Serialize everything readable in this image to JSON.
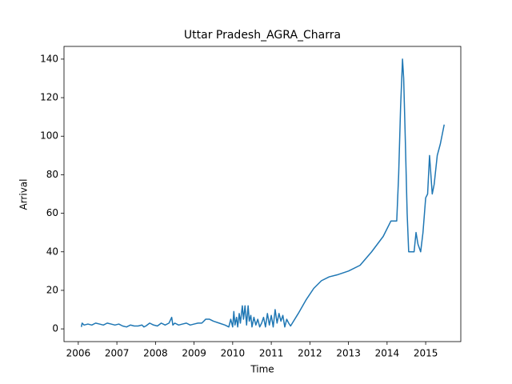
{
  "chart_data": {
    "type": "line",
    "title": "Uttar Pradesh_AGRA_Charra",
    "x_label": "Time",
    "y_label": "Arrival",
    "color": "#1f77b4",
    "x": [
      2006.08,
      2006.1,
      2006.15,
      2006.25,
      2006.35,
      2006.45,
      2006.55,
      2006.65,
      2006.75,
      2006.85,
      2006.95,
      2007.05,
      2007.15,
      2007.25,
      2007.35,
      2007.45,
      2007.55,
      2007.65,
      2007.7,
      2007.75,
      2007.85,
      2007.95,
      2008.05,
      2008.15,
      2008.25,
      2008.35,
      2008.42,
      2008.45,
      2008.5,
      2008.6,
      2008.7,
      2008.8,
      2008.9,
      2009.0,
      2009.1,
      2009.2,
      2009.3,
      2009.4,
      2009.5,
      2009.65,
      2009.8,
      2009.9,
      2009.95,
      2010.0,
      2010.03,
      2010.06,
      2010.1,
      2010.13,
      2010.17,
      2010.2,
      2010.25,
      2010.28,
      2010.32,
      2010.36,
      2010.4,
      2010.43,
      2010.47,
      2010.5,
      2010.55,
      2010.6,
      2010.65,
      2010.7,
      2010.75,
      2010.8,
      2010.85,
      2010.9,
      2010.95,
      2011.0,
      2011.05,
      2011.1,
      2011.15,
      2011.2,
      2011.25,
      2011.3,
      2011.35,
      2011.4,
      2011.45,
      2011.5,
      2011.7,
      2011.9,
      2012.1,
      2012.3,
      2012.5,
      2012.7,
      2013.0,
      2013.3,
      2013.6,
      2013.9,
      2014.1,
      2014.25,
      2014.3,
      2014.35,
      2014.4,
      2014.43,
      2014.47,
      2014.52,
      2014.56,
      2014.6,
      2014.7,
      2014.75,
      2014.8,
      2014.87,
      2014.93,
      2015.0,
      2015.05,
      2015.1,
      2015.17,
      2015.22,
      2015.3,
      2015.38,
      2015.48
    ],
    "values": [
      1,
      3,
      2,
      2.5,
      2,
      3,
      2.5,
      2,
      3,
      2.5,
      2,
      2.5,
      1.5,
      1,
      2,
      1.5,
      1.5,
      2,
      1,
      1.5,
      3,
      2,
      1.5,
      3,
      2,
      3,
      6,
      2,
      3,
      2,
      2.5,
      3,
      2,
      2.5,
      3,
      3,
      5,
      5,
      4,
      3,
      2,
      1,
      5,
      1,
      9,
      2,
      6,
      1,
      8,
      3,
      12,
      5,
      12,
      2,
      12,
      4,
      7,
      1,
      6,
      2,
      5,
      1,
      3,
      6,
      1,
      8,
      2,
      7,
      1,
      10,
      3,
      8,
      4,
      7,
      1,
      5,
      3,
      1.5,
      8,
      15,
      21,
      25,
      27,
      28,
      30,
      33,
      40,
      48,
      56,
      56,
      80,
      115,
      140,
      130,
      100,
      60,
      40,
      40,
      40,
      50,
      44,
      40,
      50,
      68,
      70,
      90,
      70,
      75,
      90,
      96,
      106
    ],
    "xlim": [
      2005.63,
      2015.91
    ],
    "ylim": [
      -6.6,
      146.6
    ],
    "xticks": [
      2006,
      2007,
      2008,
      2009,
      2010,
      2011,
      2012,
      2013,
      2014,
      2015
    ],
    "yticks": [
      0,
      20,
      40,
      60,
      80,
      100,
      120,
      140
    ]
  }
}
